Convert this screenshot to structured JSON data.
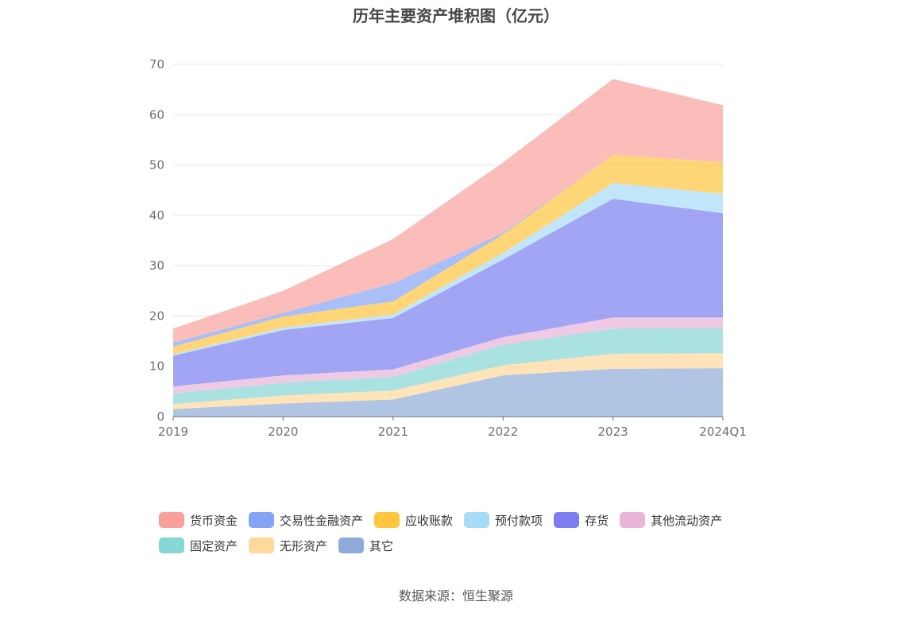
{
  "chart_data": {
    "type": "area",
    "stacked": true,
    "title": "历年主要资产堆积图（亿元）",
    "categories": [
      "2019",
      "2020",
      "2021",
      "2022",
      "2023",
      "2024Q1"
    ],
    "ylim": [
      0,
      70
    ],
    "yticks": [
      0,
      10,
      20,
      30,
      40,
      50,
      60,
      70
    ],
    "grid": true,
    "legend_position": "bottom",
    "series": [
      {
        "name": "其它",
        "color": "#8fabd9",
        "values": [
          1.5,
          2.6,
          3.4,
          8.2,
          9.5,
          9.6
        ]
      },
      {
        "name": "无形资产",
        "color": "#ffd89b",
        "values": [
          1.0,
          1.6,
          1.8,
          2.0,
          3.0,
          3.0
        ]
      },
      {
        "name": "固定资产",
        "color": "#85d6d4",
        "values": [
          2.1,
          2.5,
          2.7,
          4.1,
          5.0,
          5.0
        ]
      },
      {
        "name": "其他流动资产",
        "color": "#e8b4d8",
        "values": [
          1.4,
          1.5,
          1.5,
          1.5,
          2.2,
          2.1
        ]
      },
      {
        "name": "存货",
        "color": "#7b7ef0",
        "values": [
          6.1,
          9.0,
          10.2,
          15.4,
          23.6,
          20.7
        ]
      },
      {
        "name": "预付款项",
        "color": "#a6dcf7",
        "values": [
          0.3,
          0.5,
          0.7,
          1.3,
          3.1,
          3.9
        ]
      },
      {
        "name": "应收账款",
        "color": "#ffc53d",
        "values": [
          1.5,
          2.2,
          2.6,
          3.7,
          5.6,
          6.3
        ]
      },
      {
        "name": "交易性金融资产",
        "color": "#86a4f4",
        "values": [
          0.8,
          0.7,
          3.6,
          0.3,
          0.0,
          0.0
        ]
      },
      {
        "name": "货币资金",
        "color": "#f8a19b",
        "values": [
          2.8,
          4.4,
          8.8,
          14.0,
          15.1,
          11.3
        ]
      }
    ]
  },
  "legend": {
    "row1": [
      "货币资金",
      "交易性金融资产",
      "应收账款",
      "预付款项",
      "存货",
      "其他流动资产"
    ],
    "row2": [
      "固定资产",
      "无形资产",
      "其它"
    ]
  },
  "source": "数据来源：恒生聚源"
}
